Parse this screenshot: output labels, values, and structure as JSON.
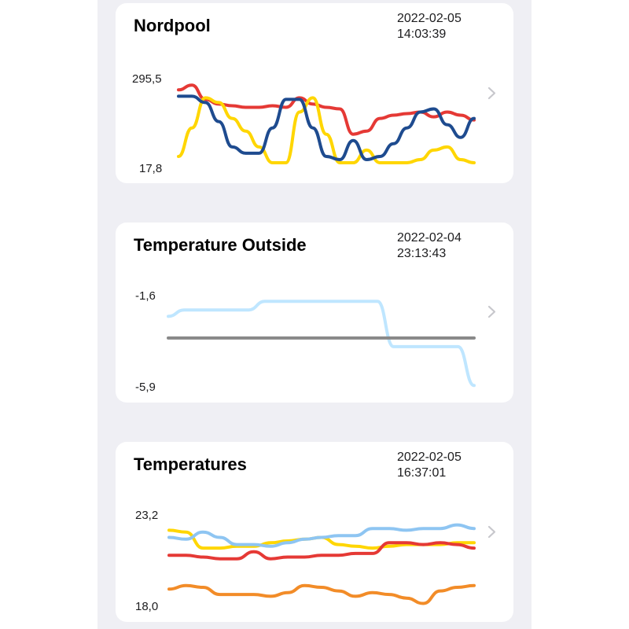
{
  "cards": [
    {
      "title": "Nordpool",
      "timestamp_date": "2022-02-05",
      "timestamp_time": "14:03:39",
      "y_max_label": "295,5",
      "y_min_label": "17,8",
      "chart_data": {
        "type": "line",
        "title": "Nordpool",
        "ylim": [
          17.8,
          295.5
        ],
        "series": [
          {
            "color": "#e53935",
            "values": [
              270,
              285,
              240,
              225,
              220,
              215,
              215,
              220,
              215,
              245,
              225,
              215,
              210,
              130,
              140,
              180,
              190,
              195,
              200,
              185,
              200,
              190,
              175
            ]
          },
          {
            "color": "#ffd600",
            "values": [
              60,
              150,
              245,
              230,
              180,
              140,
              90,
              40,
              40,
              200,
              245,
              130,
              40,
              40,
              80,
              40,
              40,
              40,
              50,
              80,
              90,
              50,
              40
            ]
          },
          {
            "color": "#1e4b8f",
            "values": [
              250,
              250,
              230,
              170,
              90,
              70,
              70,
              150,
              240,
              240,
              150,
              60,
              50,
              110,
              50,
              60,
              100,
              150,
              200,
              210,
              160,
              120,
              180
            ]
          }
        ]
      }
    },
    {
      "title": "Temperature Outside",
      "timestamp_date": "2022-02-04",
      "timestamp_time": "23:13:43",
      "y_max_label": "-1,6",
      "y_min_label": "-5,9",
      "chart_data": {
        "type": "line",
        "title": "Temperature Outside",
        "ylim": [
          -5.9,
          -1.6
        ],
        "series": [
          {
            "color": "#bfe6ff",
            "values": [
              -2.6,
              -2.3,
              -2.3,
              -2.3,
              -2.3,
              -2.3,
              -1.9,
              -1.9,
              -1.9,
              -1.9,
              -1.9,
              -1.9,
              -1.9,
              -1.9,
              -4.0,
              -4.0,
              -4.0,
              -4.0,
              -4.0,
              -5.8
            ]
          },
          {
            "color": "#888888",
            "values": [
              -3.6,
              -3.6,
              -3.6,
              -3.6,
              -3.6,
              -3.6,
              -3.6,
              -3.6,
              -3.6,
              -3.6,
              -3.6,
              -3.6,
              -3.6,
              -3.6,
              -3.6,
              -3.6,
              -3.6,
              -3.6,
              -3.6,
              -3.6
            ]
          }
        ]
      }
    },
    {
      "title": "Temperatures",
      "timestamp_date": "2022-02-05",
      "timestamp_time": "16:37:01",
      "y_max_label": "23,2",
      "y_min_label": "18,0",
      "chart_data": {
        "type": "line",
        "title": "Temperatures",
        "ylim": [
          18.0,
          23.2
        ],
        "series": [
          {
            "color": "#ffd600",
            "values": [
              22.3,
              22.2,
              21.3,
              21.3,
              21.4,
              21.4,
              21.6,
              21.7,
              21.8,
              21.9,
              21.5,
              21.4,
              21.3,
              21.4,
              21.5,
              21.5,
              21.5,
              21.6,
              21.6
            ]
          },
          {
            "color": "#8ec5f2",
            "values": [
              21.9,
              21.8,
              22.2,
              21.9,
              21.5,
              21.5,
              21.4,
              21.6,
              21.8,
              21.9,
              22.0,
              22.0,
              22.4,
              22.4,
              22.3,
              22.4,
              22.4,
              22.6,
              22.4
            ]
          },
          {
            "color": "#e53935",
            "values": [
              20.9,
              20.9,
              20.8,
              20.7,
              20.7,
              21.1,
              20.7,
              20.8,
              20.8,
              20.9,
              20.9,
              21.0,
              21.0,
              21.6,
              21.6,
              21.5,
              21.6,
              21.5,
              21.3
            ]
          },
          {
            "color": "#f28c28",
            "values": [
              19.0,
              19.2,
              19.1,
              18.7,
              18.7,
              18.7,
              18.6,
              18.8,
              19.2,
              19.1,
              18.9,
              18.6,
              18.8,
              18.7,
              18.5,
              18.2,
              18.9,
              19.1,
              19.2
            ]
          }
        ]
      }
    }
  ]
}
